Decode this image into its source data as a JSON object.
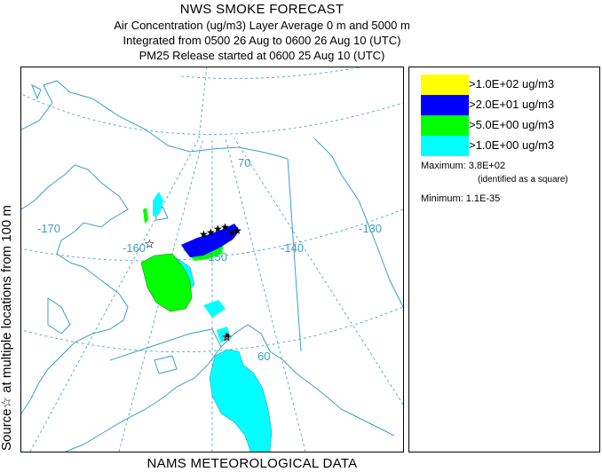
{
  "header": {
    "title": "NWS SMOKE FORECAST",
    "line1": "Air Concentration (ug/m3) Layer Average    0 m and  5000 m",
    "line2": "Integrated from 0500 26 Aug to 0600 26 Aug 10 (UTC)",
    "line3": "PM25 Release started at 0600 25 Aug 10 (UTC)"
  },
  "side_label": "Source☆  at multiple locations  from  100 m",
  "bottom_label": "NAMS METEOROLOGICAL DATA",
  "legend": {
    "items": [
      {
        "label": ">1.0E+02 ug/m3",
        "color": "#ffff00"
      },
      {
        "label": ">2.0E+01 ug/m3",
        "color": "#0000ff"
      },
      {
        "label": ">5.0E+00 ug/m3",
        "color": "#00ff00"
      },
      {
        "label": ">1.0E+00 ug/m3",
        "color": "#00ffff"
      }
    ],
    "maximum_label": "Maximum:",
    "maximum_value": "3.8E+02",
    "maximum_note": "(identified as a square)",
    "minimum_label": "Minimum:",
    "minimum_value": "1.1E-35"
  },
  "map": {
    "longitude_labels": [
      "-170",
      "-160",
      "-150",
      "-140",
      "-130"
    ],
    "latitude_labels": [
      "70",
      "60"
    ],
    "graticule_color": "#3aa0c8",
    "coast_color": "#3aa0c8"
  }
}
